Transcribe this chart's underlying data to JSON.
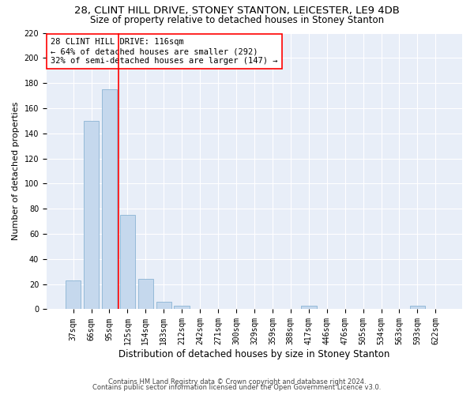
{
  "title": "28, CLINT HILL DRIVE, STONEY STANTON, LEICESTER, LE9 4DB",
  "subtitle": "Size of property relative to detached houses in Stoney Stanton",
  "xlabel": "Distribution of detached houses by size in Stoney Stanton",
  "ylabel": "Number of detached properties",
  "footnote1": "Contains HM Land Registry data © Crown copyright and database right 2024.",
  "footnote2": "Contains public sector information licensed under the Open Government Licence v3.0.",
  "bar_labels": [
    "37sqm",
    "66sqm",
    "95sqm",
    "125sqm",
    "154sqm",
    "183sqm",
    "212sqm",
    "242sqm",
    "271sqm",
    "300sqm",
    "329sqm",
    "359sqm",
    "388sqm",
    "417sqm",
    "446sqm",
    "476sqm",
    "505sqm",
    "534sqm",
    "563sqm",
    "593sqm",
    "622sqm"
  ],
  "bar_values": [
    23,
    150,
    175,
    75,
    24,
    6,
    3,
    0,
    0,
    0,
    0,
    0,
    0,
    3,
    0,
    0,
    0,
    0,
    0,
    3,
    0
  ],
  "bar_color": "#c5d8ed",
  "bar_edge_color": "#8ab4d4",
  "vline_x": 2.5,
  "vline_color": "red",
  "annotation_text": "28 CLINT HILL DRIVE: 116sqm\n← 64% of detached houses are smaller (292)\n32% of semi-detached houses are larger (147) →",
  "annotation_box_color": "white",
  "annotation_box_edge_color": "red",
  "ylim": [
    0,
    220
  ],
  "yticks": [
    0,
    20,
    40,
    60,
    80,
    100,
    120,
    140,
    160,
    180,
    200,
    220
  ],
  "background_color": "#e8eef8",
  "grid_color": "white",
  "title_fontsize": 9.5,
  "subtitle_fontsize": 8.5,
  "xlabel_fontsize": 8.5,
  "ylabel_fontsize": 8,
  "tick_fontsize": 7,
  "annot_fontsize": 7.5,
  "footnote_fontsize": 6
}
